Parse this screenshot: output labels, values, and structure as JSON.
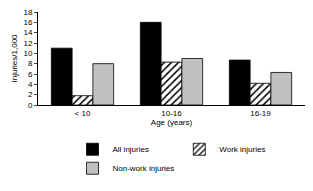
{
  "chart_data": {
    "type": "bar",
    "x_label": "Age (years)",
    "y_label": "Injuries/1,000",
    "categories": [
      "< 10",
      "10-16",
      "16-19"
    ],
    "series": [
      {
        "name": "All injuries",
        "color": "#000000",
        "values": [
          11,
          16,
          8.7
        ]
      },
      {
        "name": "Work injuries",
        "color": "#ffffff",
        "marker": "hatch",
        "values": [
          1.8,
          8.3,
          4.2
        ]
      },
      {
        "name": "Non-work injuries",
        "color": "#c0c0c0",
        "values": [
          8,
          9,
          6.3
        ]
      }
    ],
    "ylim": [
      0,
      18
    ],
    "yticks": [
      0,
      2,
      4,
      6,
      8,
      10,
      12,
      14,
      16,
      18
    ],
    "grid": false,
    "legend": "bottom"
  }
}
